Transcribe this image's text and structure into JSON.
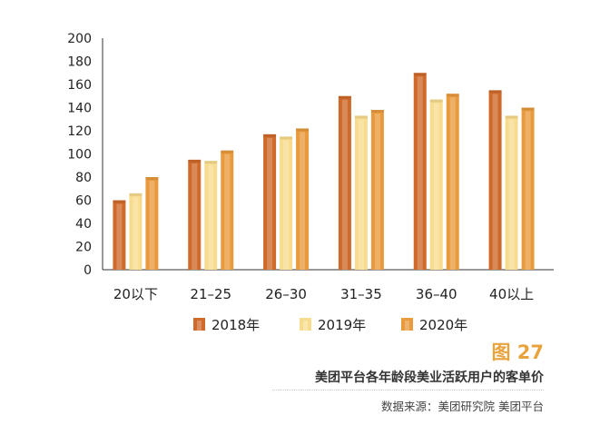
{
  "chart_data": {
    "type": "bar",
    "title": "美团平台各年龄段美业活跃用户的客单价",
    "xlabel": "",
    "ylabel": "",
    "ylim": [
      0,
      200
    ],
    "yticks": [
      0,
      20,
      40,
      60,
      80,
      100,
      120,
      140,
      160,
      180,
      200
    ],
    "categories": [
      "20以下",
      "21–25",
      "26–30",
      "31–35",
      "36–40",
      "40以上"
    ],
    "series": [
      {
        "name": "2018年",
        "color": "#cf6a2b",
        "values": [
          60,
          95,
          117,
          150,
          170,
          155
        ]
      },
      {
        "name": "2019年",
        "color": "#f8dc8e",
        "values": [
          66,
          94,
          115,
          133,
          147,
          133
        ]
      },
      {
        "name": "2020年",
        "color": "#e99a3c",
        "values": [
          80,
          103,
          122,
          138,
          152,
          140
        ]
      }
    ],
    "legend_position": "bottom"
  },
  "figure": {
    "number": "图 27",
    "caption": "美团平台各年龄段美业活跃用户的客单价",
    "source": "数据来源：美团研究院 美团平台"
  }
}
